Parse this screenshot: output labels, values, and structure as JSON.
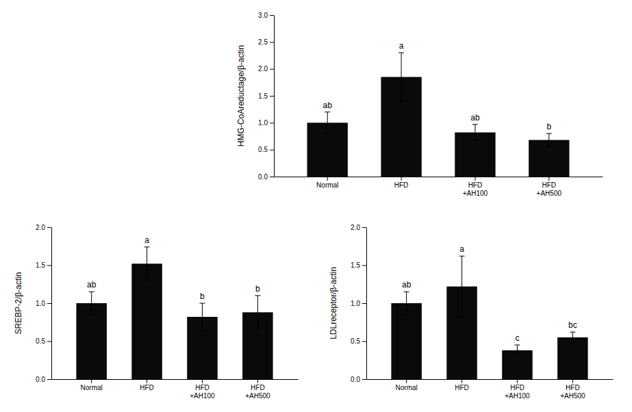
{
  "chart_data": [
    {
      "type": "bar",
      "categories": [
        "Normal",
        "HFD",
        "HFD\n+AH100",
        "HFD\n+AH500"
      ],
      "values": [
        1.0,
        1.85,
        0.82,
        0.68
      ],
      "errors": [
        0.2,
        0.45,
        0.15,
        0.12
      ],
      "annotations": [
        "ab",
        "a",
        "ab",
        "b"
      ],
      "ylabel": "HMG-CoAreductage/β-actin",
      "ylim": [
        0,
        3.0
      ],
      "yticks": [
        {
          "value": 0,
          "label": "0.0"
        },
        0.5,
        {
          "value": 1,
          "label": "1.0"
        },
        1.5,
        {
          "value": 2,
          "label": "2.0"
        },
        2.5,
        {
          "value": 3,
          "label": "3.0"
        }
      ],
      "color": "#0a0a0a",
      "grid": false
    },
    {
      "type": "bar",
      "categories": [
        "Normal",
        "HFD",
        "HFD\n+AH100",
        "HFD\n+AH500"
      ],
      "values": [
        1.0,
        1.52,
        0.82,
        0.88
      ],
      "errors": [
        0.15,
        0.22,
        0.18,
        0.22
      ],
      "annotations": [
        "ab",
        "a",
        "b",
        "b"
      ],
      "ylabel": "SREBP-2/β-actin",
      "ylim": [
        0,
        2.0
      ],
      "yticks": [
        {
          "value": 0,
          "label": "0.0"
        },
        0.5,
        {
          "value": 1,
          "label": "1.0"
        },
        1.5,
        {
          "value": 2,
          "label": "2.0"
        }
      ],
      "color": "#0a0a0a",
      "grid": false
    },
    {
      "type": "bar",
      "categories": [
        "Normal",
        "HFD",
        "HFD\n+AH100",
        "HFD\n+AH500"
      ],
      "values": [
        1.0,
        1.22,
        0.38,
        0.55
      ],
      "errors": [
        0.15,
        0.4,
        0.07,
        0.07
      ],
      "annotations": [
        "ab",
        "a",
        "c",
        "bc"
      ],
      "ylabel": "LDLreceptor/β-actin",
      "ylim": [
        0,
        2.0
      ],
      "yticks": [
        {
          "value": 0,
          "label": "0.0"
        },
        0.5,
        {
          "value": 1,
          "label": "1.0"
        },
        1.5,
        {
          "value": 2,
          "label": "2.0"
        }
      ],
      "color": "#0a0a0a",
      "grid": false
    }
  ]
}
